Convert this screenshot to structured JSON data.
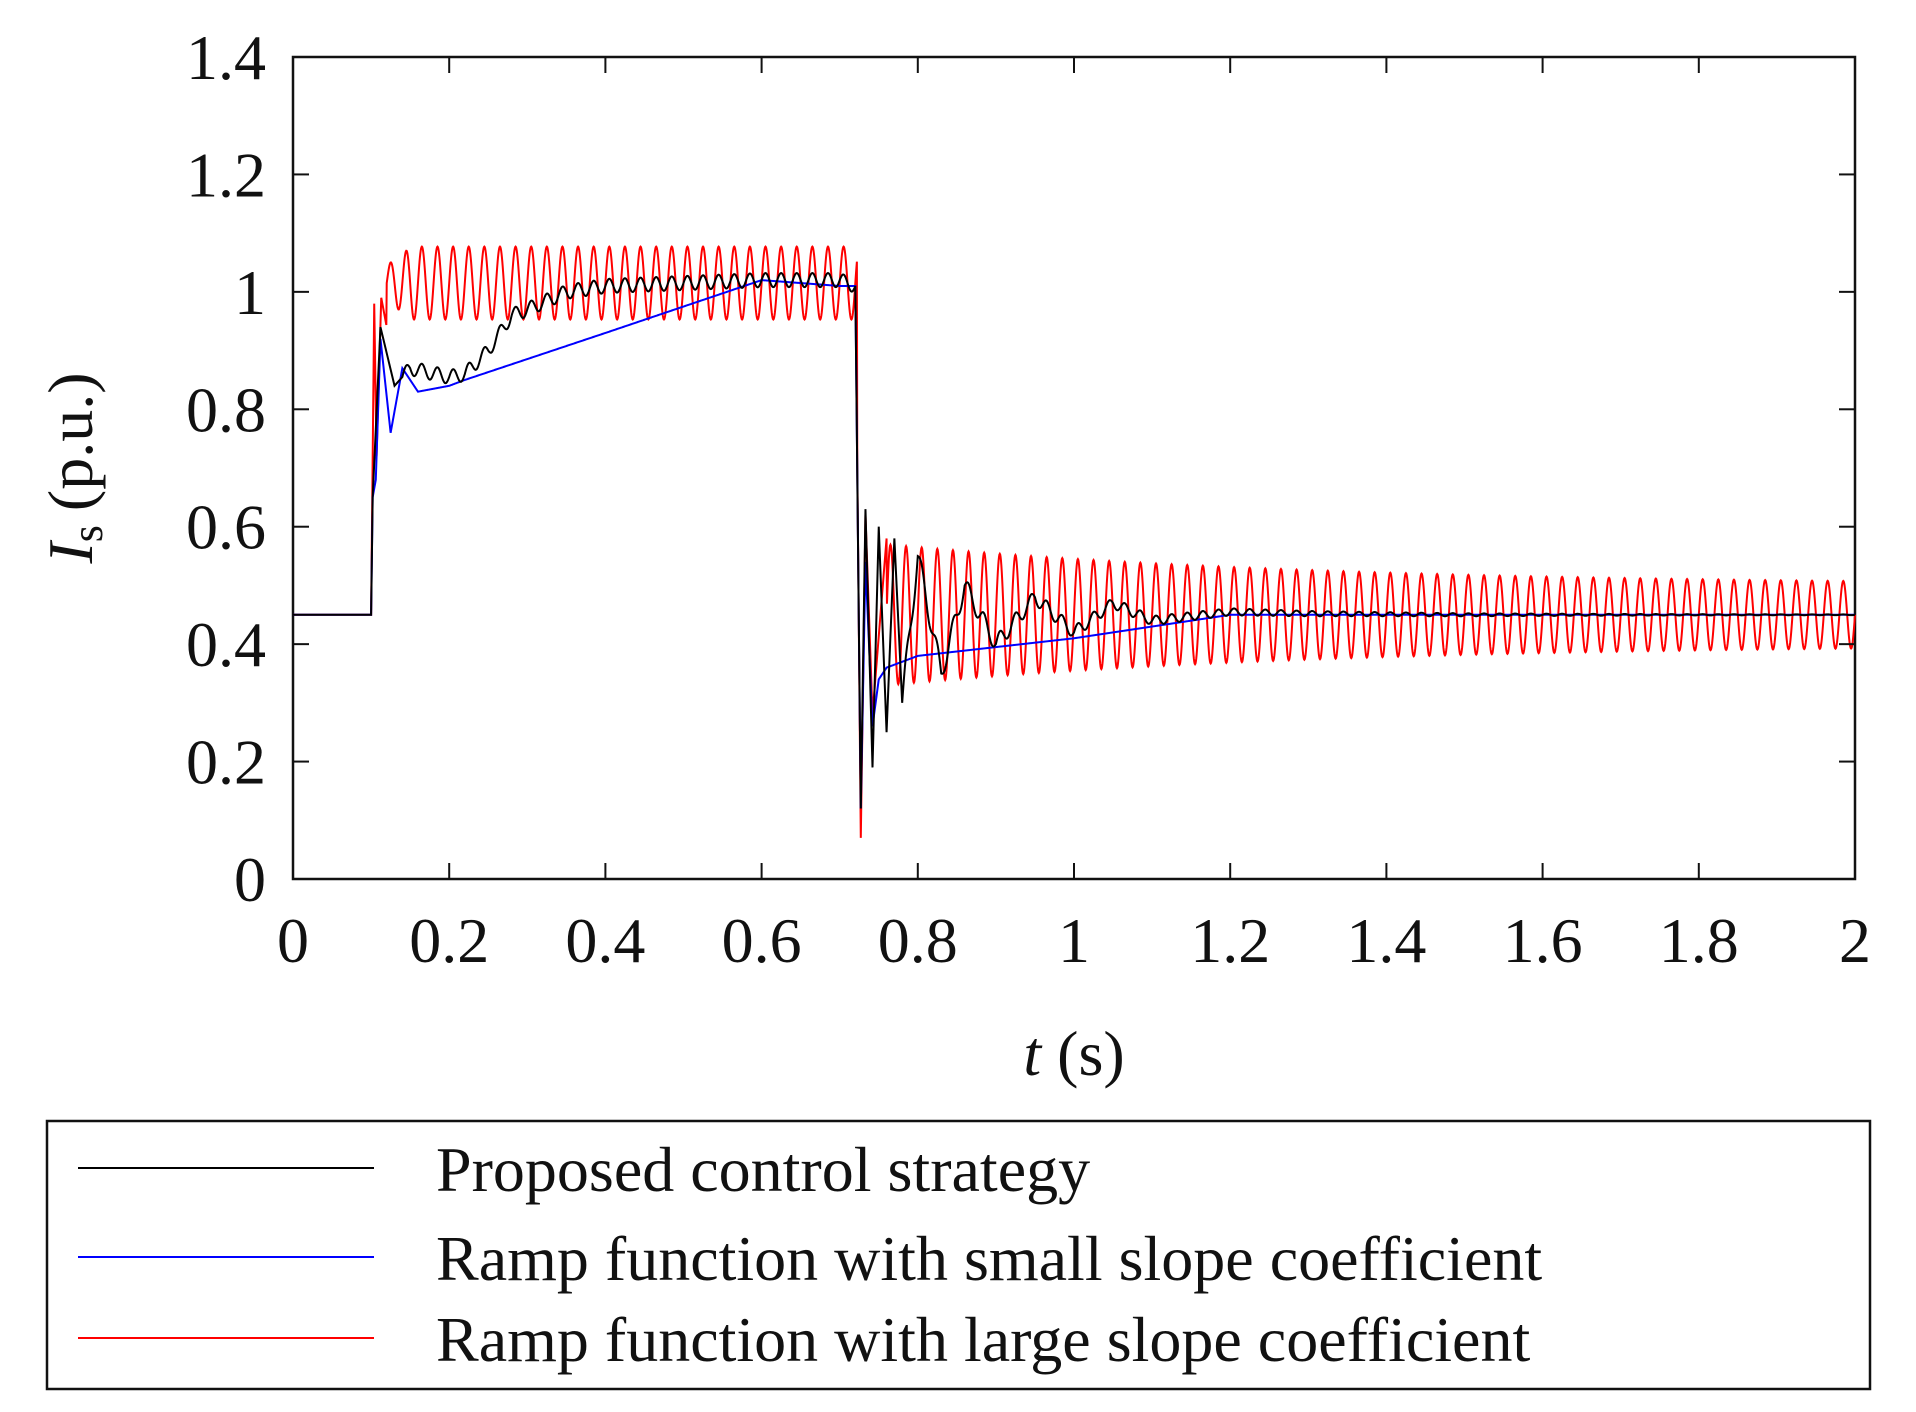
{
  "chart_data": {
    "type": "line",
    "title": "",
    "xlabel": {
      "symbol": "t",
      "unit": "(s)"
    },
    "ylabel": {
      "symbol": "I",
      "subscript": "s",
      "unit": "(p.u.)"
    },
    "xlim": [
      0,
      2
    ],
    "ylim": [
      0,
      1.4
    ],
    "grid": false,
    "x_ticks": [
      0,
      0.2,
      0.4,
      0.6,
      0.8,
      1,
      1.2,
      1.4,
      1.6,
      1.8,
      2
    ],
    "x_tick_labels": [
      "0",
      "0.2",
      "0.4",
      "0.6",
      "0.8",
      "1",
      "1.2",
      "1.4",
      "1.6",
      "1.8",
      "2"
    ],
    "y_ticks": [
      0,
      0.2,
      0.4,
      0.6,
      0.8,
      1,
      1.2,
      1.4
    ],
    "y_tick_labels": [
      "0",
      "0.2",
      "0.4",
      "0.6",
      "0.8",
      "1",
      "1.2",
      "1.4"
    ],
    "legend_position": "bottom-outside",
    "series": [
      {
        "name": "Proposed control strategy",
        "color": "#000000",
        "points": [
          [
            0,
            0.45
          ],
          [
            0.1,
            0.45
          ],
          [
            0.102,
            0.65
          ],
          [
            0.112,
            0.94
          ],
          [
            0.13,
            0.84
          ],
          [
            0.15,
            0.87
          ],
          [
            0.2,
            0.855
          ],
          [
            0.22,
            0.86
          ],
          [
            0.25,
            0.9
          ],
          [
            0.28,
            0.96
          ],
          [
            0.3,
            0.97
          ],
          [
            0.35,
            1.0
          ],
          [
            0.4,
            1.01
          ],
          [
            0.5,
            1.015
          ],
          [
            0.6,
            1.02
          ],
          [
            0.7,
            1.02
          ],
          [
            0.72,
            1.01
          ],
          [
            0.724,
            0.5
          ],
          [
            0.727,
            0.12
          ],
          [
            0.733,
            0.63
          ],
          [
            0.742,
            0.19
          ],
          [
            0.75,
            0.6
          ],
          [
            0.76,
            0.25
          ],
          [
            0.77,
            0.58
          ],
          [
            0.78,
            0.3
          ],
          [
            0.8,
            0.55
          ],
          [
            0.83,
            0.35
          ],
          [
            0.86,
            0.5
          ],
          [
            0.9,
            0.4
          ],
          [
            0.95,
            0.48
          ],
          [
            1.0,
            0.42
          ],
          [
            1.05,
            0.47
          ],
          [
            1.1,
            0.44
          ],
          [
            1.2,
            0.455
          ],
          [
            1.3,
            0.452
          ],
          [
            1.5,
            0.45
          ],
          [
            1.8,
            0.45
          ],
          [
            2.0,
            0.45
          ]
        ],
        "oscillation": {
          "amplitude": [
            0.005,
            0.02
          ],
          "frequency_hz": 50,
          "decay_after": 0.727
        }
      },
      {
        "name": "Ramp function with small slope coefficient",
        "color": "#0000ff",
        "points": [
          [
            0,
            0.45
          ],
          [
            0.1,
            0.45
          ],
          [
            0.102,
            0.65
          ],
          [
            0.106,
            0.68
          ],
          [
            0.112,
            0.92
          ],
          [
            0.125,
            0.76
          ],
          [
            0.14,
            0.87
          ],
          [
            0.16,
            0.83
          ],
          [
            0.2,
            0.84
          ],
          [
            0.22,
            0.85
          ],
          [
            0.4,
            0.93
          ],
          [
            0.5,
            0.975
          ],
          [
            0.6,
            1.02
          ],
          [
            0.7,
            1.01
          ],
          [
            0.72,
            1.01
          ],
          [
            0.724,
            0.5
          ],
          [
            0.727,
            0.12
          ],
          [
            0.733,
            0.54
          ],
          [
            0.742,
            0.26
          ],
          [
            0.75,
            0.34
          ],
          [
            0.76,
            0.36
          ],
          [
            0.8,
            0.38
          ],
          [
            0.9,
            0.395
          ],
          [
            1.0,
            0.41
          ],
          [
            1.2,
            0.45
          ],
          [
            1.3,
            0.45
          ],
          [
            1.6,
            0.45
          ],
          [
            2.0,
            0.45
          ]
        ]
      },
      {
        "name": "Ramp function with large slope coefficient",
        "color": "#ff0000",
        "points": [
          [
            0,
            0.45
          ],
          [
            0.1,
            0.45
          ],
          [
            0.104,
            0.98
          ],
          [
            0.107,
            0.72
          ],
          [
            0.113,
            0.99
          ],
          [
            0.12,
            0.94
          ],
          [
            0.15,
            1.08
          ],
          [
            0.2,
            1.075
          ],
          [
            0.3,
            1.07
          ],
          [
            0.5,
            1.065
          ],
          [
            0.72,
            1.06
          ],
          [
            0.724,
            0.5
          ],
          [
            0.727,
            0.07
          ],
          [
            0.733,
            0.62
          ],
          [
            0.742,
            0.28
          ],
          [
            0.76,
            0.58
          ],
          [
            0.8,
            0.57
          ],
          [
            1.0,
            0.55
          ],
          [
            1.2,
            0.53
          ],
          [
            1.5,
            0.515
          ],
          [
            2.0,
            0.505
          ]
        ],
        "oscillation": {
          "amplitude": [
            0.06,
            0.06
          ],
          "frequency_hz": 50,
          "note": "sustained oscillation about 1.01 (0.15–0.72 s) and about 0.45 after 0.73 s"
        }
      }
    ]
  },
  "legend": {
    "items": [
      {
        "label": "Proposed control strategy",
        "color": "#000000"
      },
      {
        "label": "Ramp function with small slope coefficient",
        "color": "#0000ff"
      },
      {
        "label": "Ramp function with large slope coefficient",
        "color": "#ff0000"
      }
    ]
  }
}
